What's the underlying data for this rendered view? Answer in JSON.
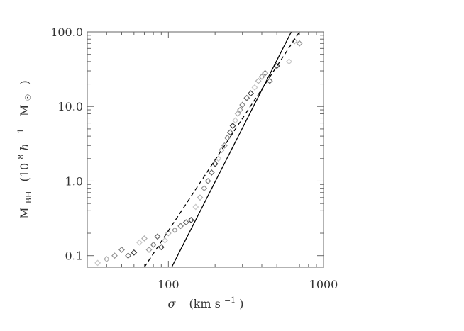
{
  "chart_data": {
    "type": "scatter",
    "title": "",
    "xlabel": "σ  (km s⁻¹)",
    "ylabel": "M_BH (10⁸ h⁻¹ M☉)",
    "xlabel_parts": {
      "symbol": "σ",
      "unit": "(km s",
      "exp": "−1",
      "close": ")"
    },
    "ylabel_parts": {
      "symbol": "M",
      "sub": "BH",
      "open": "(10",
      "exp8": "8",
      "h": " h",
      "exp_h": "−1",
      "msun": "M",
      "sun": "☉",
      "close": ")"
    },
    "x_scale": "log",
    "y_scale": "log",
    "xlim": [
      30,
      1000
    ],
    "ylim": [
      0.07,
      100
    ],
    "x_ticks": [
      100,
      1000
    ],
    "x_tick_labels": [
      "100",
      "1000"
    ],
    "y_ticks": [
      0.1,
      1.0,
      10.0,
      100.0
    ],
    "y_tick_labels": [
      "0.1",
      "1.0",
      "10.0",
      "100.0"
    ],
    "grid": false,
    "legend": "none",
    "series": [
      {
        "marker": "open-diamond",
        "colors": [
          "#c8c8c8",
          "#b0b0b0",
          "#989898",
          "#808080",
          "#686868",
          "#404040"
        ],
        "points": [
          [
            35,
            0.08
          ],
          [
            40,
            0.09
          ],
          [
            45,
            0.1
          ],
          [
            50,
            0.12
          ],
          [
            55,
            0.1
          ],
          [
            60,
            0.11
          ],
          [
            65,
            0.15
          ],
          [
            70,
            0.17
          ],
          [
            75,
            0.12
          ],
          [
            80,
            0.14
          ],
          [
            85,
            0.18
          ],
          [
            90,
            0.13
          ],
          [
            95,
            0.16
          ],
          [
            100,
            0.2
          ],
          [
            110,
            0.22
          ],
          [
            120,
            0.25
          ],
          [
            130,
            0.28
          ],
          [
            140,
            0.3
          ],
          [
            150,
            0.45
          ],
          [
            160,
            0.6
          ],
          [
            170,
            0.8
          ],
          [
            180,
            1.0
          ],
          [
            190,
            1.3
          ],
          [
            200,
            1.7
          ],
          [
            210,
            2.0
          ],
          [
            220,
            2.6
          ],
          [
            230,
            3.0
          ],
          [
            240,
            3.8
          ],
          [
            250,
            4.5
          ],
          [
            260,
            5.5
          ],
          [
            270,
            6.5
          ],
          [
            280,
            8.0
          ],
          [
            290,
            9.0
          ],
          [
            300,
            10.5
          ],
          [
            320,
            13.0
          ],
          [
            340,
            15.0
          ],
          [
            360,
            18.0
          ],
          [
            380,
            22.0
          ],
          [
            400,
            25.0
          ],
          [
            420,
            28.0
          ],
          [
            450,
            22.0
          ],
          [
            500,
            35.0
          ],
          [
            600,
            40.0
          ],
          [
            650,
            75.0
          ],
          [
            700,
            70.0
          ]
        ]
      }
    ],
    "fit_lines": [
      {
        "style": "solid",
        "x": [
          105,
          620
        ],
        "y": [
          0.07,
          100
        ]
      },
      {
        "style": "dashed",
        "x": [
          70,
          700
        ],
        "y": [
          0.07,
          100
        ]
      }
    ]
  }
}
